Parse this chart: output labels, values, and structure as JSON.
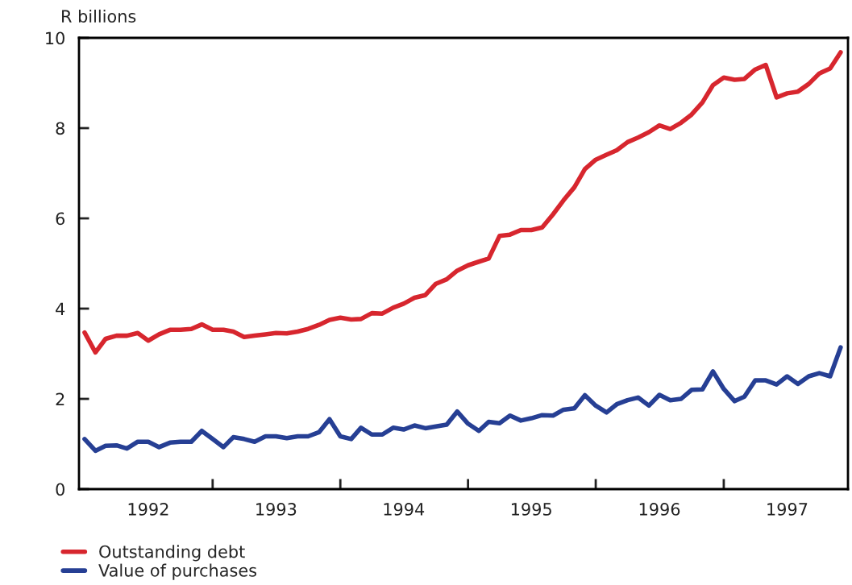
{
  "chart_data": {
    "type": "line",
    "ylabel": "R billions",
    "x": [
      "1992-01",
      "1992-02",
      "1992-03",
      "1992-04",
      "1992-05",
      "1992-06",
      "1992-07",
      "1992-08",
      "1992-09",
      "1992-10",
      "1992-11",
      "1992-12",
      "1993-01",
      "1993-02",
      "1993-03",
      "1993-04",
      "1993-05",
      "1993-06",
      "1993-07",
      "1993-08",
      "1993-09",
      "1993-10",
      "1993-11",
      "1993-12",
      "1994-01",
      "1994-02",
      "1994-03",
      "1994-04",
      "1994-05",
      "1994-06",
      "1994-07",
      "1994-08",
      "1994-09",
      "1994-10",
      "1994-11",
      "1994-12",
      "1995-01",
      "1995-02",
      "1995-03",
      "1995-04",
      "1995-05",
      "1995-06",
      "1995-07",
      "1995-08",
      "1995-09",
      "1995-10",
      "1995-11",
      "1995-12",
      "1996-01",
      "1996-02",
      "1996-03",
      "1996-04",
      "1996-05",
      "1996-06",
      "1996-07",
      "1996-08",
      "1996-09",
      "1996-10",
      "1996-11",
      "1996-12",
      "1997-01",
      "1997-02",
      "1997-03",
      "1997-04",
      "1997-05",
      "1997-06",
      "1997-07",
      "1997-08",
      "1997-09",
      "1997-10",
      "1997-11",
      "1997-12"
    ],
    "series": [
      {
        "name": "Outstanding debt",
        "color": "#d7262e",
        "values": [
          3.47,
          3.03,
          3.33,
          3.4,
          3.4,
          3.46,
          3.29,
          3.43,
          3.53,
          3.53,
          3.55,
          3.65,
          3.53,
          3.53,
          3.49,
          3.37,
          3.4,
          3.43,
          3.46,
          3.45,
          3.49,
          3.55,
          3.64,
          3.75,
          3.8,
          3.76,
          3.77,
          3.9,
          3.89,
          4.02,
          4.11,
          4.24,
          4.3,
          4.55,
          4.65,
          4.84,
          4.96,
          5.04,
          5.11,
          5.61,
          5.64,
          5.74,
          5.74,
          5.8,
          6.09,
          6.4,
          6.69,
          7.09,
          7.3,
          7.41,
          7.51,
          7.69,
          7.79,
          7.91,
          8.06,
          7.98,
          8.12,
          8.3,
          8.57,
          8.95,
          9.12,
          9.07,
          9.09,
          9.3,
          9.4,
          8.68,
          8.77,
          8.81,
          8.98,
          9.21,
          9.32,
          9.68
        ]
      },
      {
        "name": "Value of purchases",
        "color": "#263f94",
        "values": [
          1.11,
          0.85,
          0.96,
          0.97,
          0.9,
          1.05,
          1.05,
          0.93,
          1.03,
          1.05,
          1.05,
          1.29,
          1.11,
          0.93,
          1.15,
          1.11,
          1.05,
          1.17,
          1.17,
          1.13,
          1.17,
          1.17,
          1.26,
          1.55,
          1.17,
          1.11,
          1.36,
          1.21,
          1.21,
          1.36,
          1.32,
          1.41,
          1.35,
          1.39,
          1.43,
          1.72,
          1.45,
          1.29,
          1.49,
          1.46,
          1.63,
          1.52,
          1.57,
          1.64,
          1.63,
          1.76,
          1.79,
          2.08,
          1.85,
          1.7,
          1.88,
          1.97,
          2.03,
          1.85,
          2.09,
          1.97,
          2.0,
          2.2,
          2.21,
          2.61,
          2.22,
          1.95,
          2.05,
          2.41,
          2.41,
          2.32,
          2.5,
          2.33,
          2.5,
          2.57,
          2.5,
          3.14
        ]
      }
    ],
    "xlim": [
      "1991-12-16",
      "1997-12-22"
    ],
    "xticks": [
      {
        "value": "1992-07-01",
        "label": "1992"
      },
      {
        "value": "1993-01-01",
        "label": null
      },
      {
        "value": "1993-07-01",
        "label": "1993"
      },
      {
        "value": "1994-01-01",
        "label": null
      },
      {
        "value": "1994-07-01",
        "label": "1994"
      },
      {
        "value": "1995-01-01",
        "label": null
      },
      {
        "value": "1995-07-01",
        "label": "1995"
      },
      {
        "value": "1996-01-01",
        "label": null
      },
      {
        "value": "1996-07-01",
        "label": "1996"
      },
      {
        "value": "1997-01-01",
        "label": null
      },
      {
        "value": "1997-07-01",
        "label": "1997"
      }
    ],
    "ylim": [
      0,
      10
    ],
    "yticks": [
      0,
      2,
      4,
      6,
      8,
      10
    ],
    "grid": false,
    "legend": "bottom left",
    "marker": "none",
    "line_style": "solid"
  }
}
